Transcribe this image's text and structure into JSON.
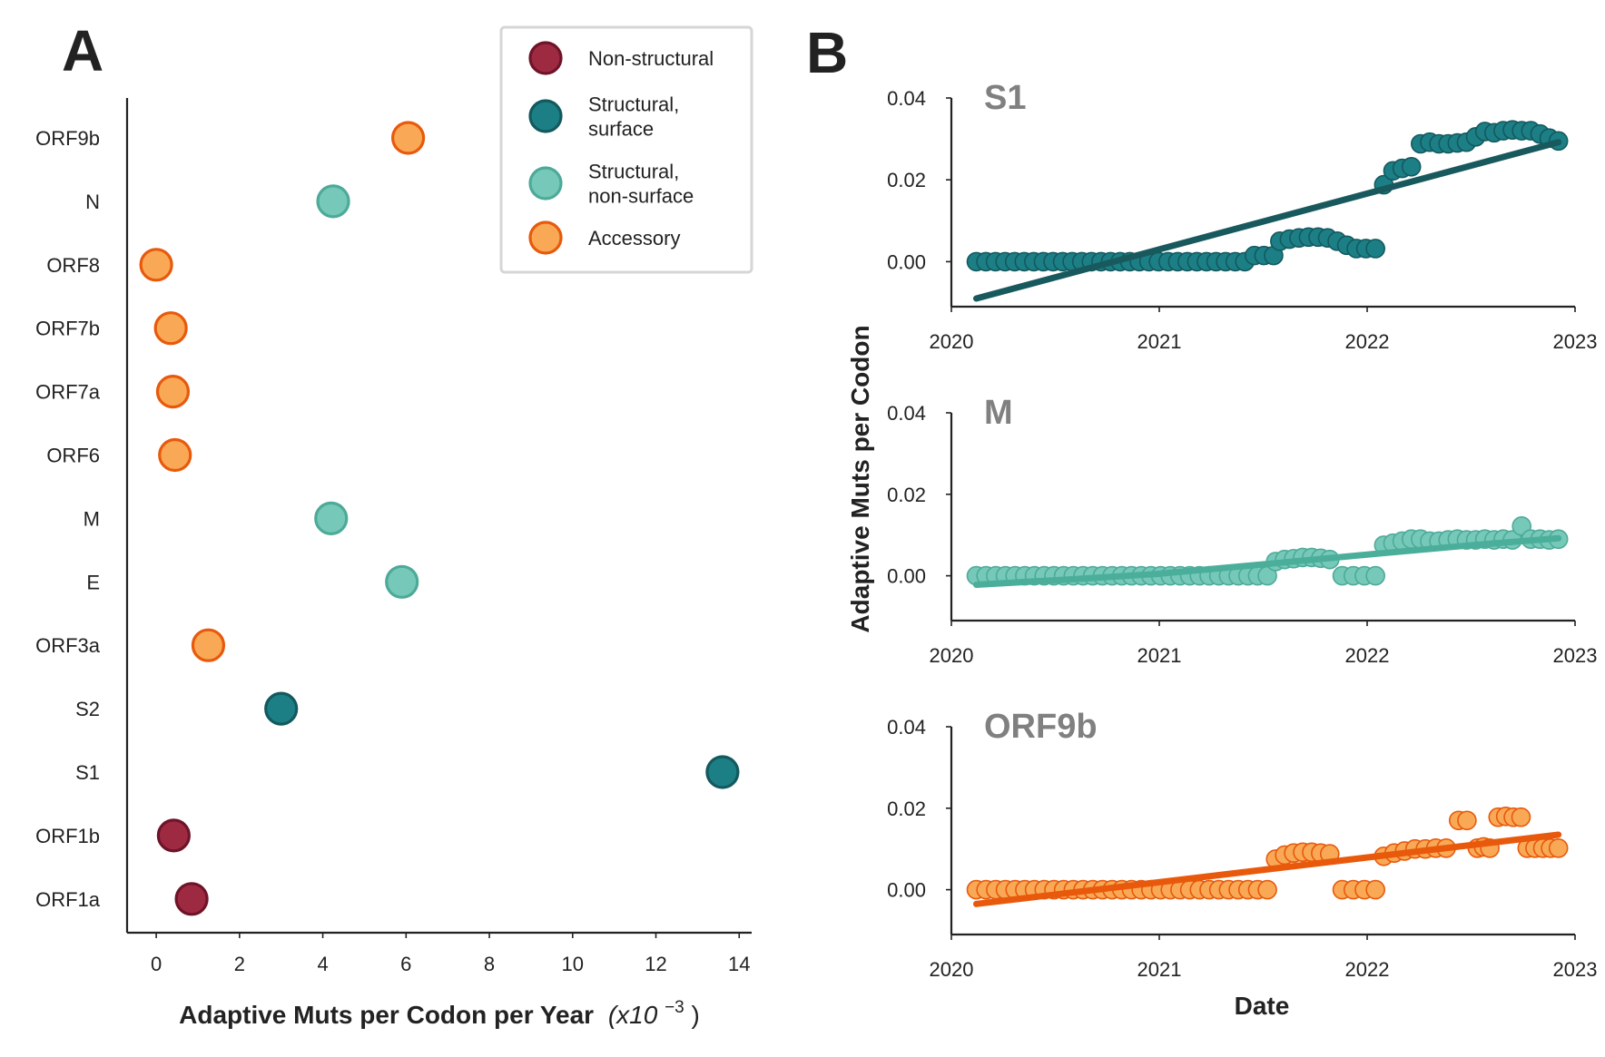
{
  "colors": {
    "Non-structural": {
      "fill": "#9e2a42",
      "stroke": "#6e1428"
    },
    "Structural, surface": {
      "fill": "#1c7f86",
      "stroke": "#13595e"
    },
    "Structural, non-surface": {
      "fill": "#76c9b9",
      "stroke": "#4daa98"
    },
    "Accessory": {
      "fill": "#f9a955",
      "stroke": "#e8590c"
    }
  },
  "chart_data": [
    {
      "panel": "A",
      "type": "scatter",
      "title": "",
      "xlabel": "Adaptive Muts per Codon per Year",
      "xlabel_unit": "(x10",
      "xlabel_exp": "−3",
      "xlabel_close": ")",
      "ylabel": "",
      "xlim": [
        -0.7,
        14.3
      ],
      "xticks": [
        0,
        2,
        4,
        6,
        8,
        10,
        12,
        14
      ],
      "categories": [
        "ORF9b",
        "N",
        "ORF8",
        "ORF7b",
        "ORF7a",
        "ORF6",
        "M",
        "E",
        "ORF3a",
        "S2",
        "S1",
        "ORF1b",
        "ORF1a"
      ],
      "points": [
        {
          "gene": "ORF9b",
          "value": 6.05,
          "group": "Accessory"
        },
        {
          "gene": "N",
          "value": 4.25,
          "group": "Structural, non-surface"
        },
        {
          "gene": "ORF8",
          "value": 0.0,
          "group": "Accessory"
        },
        {
          "gene": "ORF7b",
          "value": 0.35,
          "group": "Accessory"
        },
        {
          "gene": "ORF7a",
          "value": 0.4,
          "group": "Accessory"
        },
        {
          "gene": "ORF6",
          "value": 0.45,
          "group": "Accessory"
        },
        {
          "gene": "M",
          "value": 4.2,
          "group": "Structural, non-surface"
        },
        {
          "gene": "E",
          "value": 5.9,
          "group": "Structural, non-surface"
        },
        {
          "gene": "ORF3a",
          "value": 1.25,
          "group": "Accessory"
        },
        {
          "gene": "S2",
          "value": 3.0,
          "group": "Structural, surface"
        },
        {
          "gene": "S1",
          "value": 13.6,
          "group": "Structural, surface"
        },
        {
          "gene": "ORF1b",
          "value": 0.42,
          "group": "Non-structural"
        },
        {
          "gene": "ORF1a",
          "value": 0.85,
          "group": "Non-structural"
        }
      ],
      "legend": {
        "position": "top-right",
        "entries": [
          {
            "group": "Non-structural",
            "lines": [
              "Non-structural"
            ]
          },
          {
            "group": "Structural, surface",
            "lines": [
              "Structural,",
              "surface"
            ]
          },
          {
            "group": "Structural, non-surface",
            "lines": [
              "Structural,",
              "non-surface"
            ]
          },
          {
            "group": "Accessory",
            "lines": [
              "Accessory"
            ]
          }
        ]
      }
    },
    {
      "panel": "B",
      "type": "scatter+line",
      "shared_ylabel": "Adaptive Muts per Codon",
      "xlabel": "Date",
      "xlim": [
        2020,
        2023
      ],
      "ylim": [
        -0.011,
        0.04
      ],
      "xticks": [
        "2020",
        "2021",
        "2022",
        "2023"
      ],
      "yticks": [
        "0.00",
        "0.02",
        "0.04"
      ],
      "subplots": [
        {
          "title": "S1",
          "group": "Structural, surface",
          "series": [
            {
              "x_start": 2020.12,
              "x_end": 2021.55,
              "y": [
                0,
                0,
                0,
                0,
                0,
                0,
                0,
                0,
                0,
                0,
                0,
                0,
                0,
                0,
                0,
                0,
                0,
                0,
                0,
                0,
                0,
                0,
                0,
                0,
                0,
                0,
                0,
                0,
                0,
                0.0015,
                0.0015,
                0.0015
              ]
            },
            {
              "x_start": 2021.58,
              "x_end": 2022.04,
              "y": [
                0.005,
                0.0055,
                0.0058,
                0.006,
                0.006,
                0.0058,
                0.005,
                0.004,
                0.0032,
                0.0032,
                0.0032
              ]
            },
            {
              "x_start": 2022.08,
              "x_end": 2022.92,
              "y": [
                0.0188,
                0.0222,
                0.0228,
                0.0232,
                0.0288,
                0.0292,
                0.0288,
                0.0288,
                0.029,
                0.0292,
                0.0305,
                0.0318,
                0.0315,
                0.032,
                0.0322,
                0.032,
                0.032,
                0.0312,
                0.0302,
                0.0295
              ]
            }
          ],
          "trend": {
            "x": [
              2020.12,
              2022.92
            ],
            "y": [
              -0.009,
              0.0292
            ]
          }
        },
        {
          "title": "M",
          "group": "Structural, non-surface",
          "series": [
            {
              "x_start": 2020.12,
              "x_end": 2021.52,
              "y": [
                0,
                0,
                0,
                0,
                0,
                0,
                0,
                0,
                0,
                0,
                0,
                0,
                0,
                0,
                0,
                0,
                0,
                0,
                0,
                0,
                0,
                0,
                0,
                0,
                0,
                0,
                0,
                0,
                0,
                0,
                0
              ]
            },
            {
              "x_start": 2021.56,
              "x_end": 2021.82,
              "y": [
                0.0035,
                0.004,
                0.0042,
                0.0045,
                0.0045,
                0.0043,
                0.004
              ]
            },
            {
              "x_start": 2021.88,
              "x_end": 2022.04,
              "y": [
                0,
                0,
                0,
                0
              ]
            },
            {
              "x_start": 2022.08,
              "x_end": 2022.92,
              "y": [
                0.0075,
                0.008,
                0.0085,
                0.009,
                0.009,
                0.0085,
                0.0085,
                0.0088,
                0.009,
                0.0088,
                0.0088,
                0.009,
                0.0088,
                0.009,
                0.0088,
                0.0122,
                0.009,
                0.009,
                0.0088,
                0.009
              ]
            }
          ],
          "trend": {
            "x": [
              2020.12,
              2020.6,
              2021.0,
              2021.5,
              2022.0,
              2022.5,
              2022.92
            ],
            "y": [
              -0.0022,
              -0.0008,
              0.0005,
              0.0028,
              0.0052,
              0.0075,
              0.0092
            ]
          }
        },
        {
          "title": "ORF9b",
          "group": "Accessory",
          "series": [
            {
              "x_start": 2020.12,
              "x_end": 2021.52,
              "y": [
                0,
                0,
                0,
                0,
                0,
                0,
                0,
                0,
                0,
                0,
                0,
                0,
                0,
                0,
                0,
                0,
                0,
                0,
                0,
                0,
                0,
                0,
                0,
                0,
                0,
                0,
                0,
                0,
                0,
                0,
                0
              ]
            },
            {
              "x_start": 2021.56,
              "x_end": 2021.82,
              "y": [
                0.0075,
                0.0085,
                0.009,
                0.0092,
                0.0092,
                0.009,
                0.0088
              ]
            },
            {
              "x_start": 2021.88,
              "x_end": 2022.04,
              "y": [
                0,
                0,
                0,
                0
              ]
            },
            {
              "x_start": 2022.08,
              "x_end": 2022.38,
              "y": [
                0.0082,
                0.009,
                0.0095,
                0.01,
                0.01,
                0.0102,
                0.0102
              ]
            },
            {
              "x_start": 2022.44,
              "x_end": 2022.48,
              "y": [
                0.017,
                0.017
              ]
            },
            {
              "x_start": 2022.53,
              "x_end": 2022.59,
              "y": [
                0.0102,
                0.0105,
                0.0102
              ]
            },
            {
              "x_start": 2022.63,
              "x_end": 2022.74,
              "y": [
                0.0178,
                0.018,
                0.0178,
                0.0178
              ]
            },
            {
              "x_start": 2022.77,
              "x_end": 2022.92,
              "y": [
                0.0102,
                0.0102,
                0.0102,
                0.0102,
                0.0102
              ]
            }
          ],
          "trend": {
            "x": [
              2020.12,
              2022.92
            ],
            "y": [
              -0.0035,
              0.0135
            ]
          }
        }
      ]
    }
  ]
}
